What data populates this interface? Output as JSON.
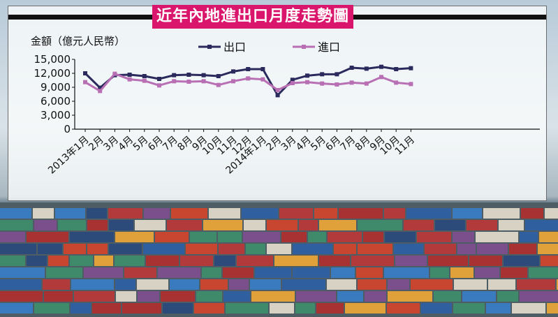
{
  "title": "近年內地進出口月度走勢圖",
  "colors": {
    "export": "#2a2a5c",
    "import": "#b86fb4",
    "title_bg": "#d9166b",
    "bar": "#111111"
  },
  "chart_data": {
    "type": "line",
    "title": "近年內地進出口月度走勢圖",
    "unit_label": "金額（億元人民幣）",
    "ylim": [
      0,
      15000
    ],
    "yticks": [
      "0",
      "3,000",
      "6,000",
      "9,000",
      "12,000",
      "15,000"
    ],
    "ytick_values": [
      0,
      3000,
      6000,
      9000,
      12000,
      15000
    ],
    "categories": [
      "2013年1月",
      "2月",
      "3月",
      "4月",
      "5月",
      "6月",
      "7月",
      "8月",
      "9月",
      "10月",
      "11月",
      "12月",
      "2014年1月",
      "2月",
      "3月",
      "4月",
      "5月",
      "6月",
      "7月",
      "8月",
      "9月",
      "10月",
      "11月"
    ],
    "series": [
      {
        "name": "出口",
        "values": [
          12000,
          8900,
          11600,
          11700,
          11400,
          10800,
          11600,
          11700,
          11600,
          11400,
          12400,
          12900,
          12900,
          7300,
          10600,
          11500,
          11800,
          11800,
          13200,
          13000,
          13400,
          12900,
          13100
        ]
      },
      {
        "name": "進口",
        "values": [
          10100,
          8200,
          11900,
          10700,
          10400,
          9400,
          10300,
          10200,
          10300,
          9500,
          10300,
          10900,
          10700,
          8400,
          9900,
          10100,
          9800,
          9600,
          10000,
          9800,
          11200,
          10000,
          9700
        ]
      }
    ],
    "grid": false,
    "legend": "top"
  }
}
